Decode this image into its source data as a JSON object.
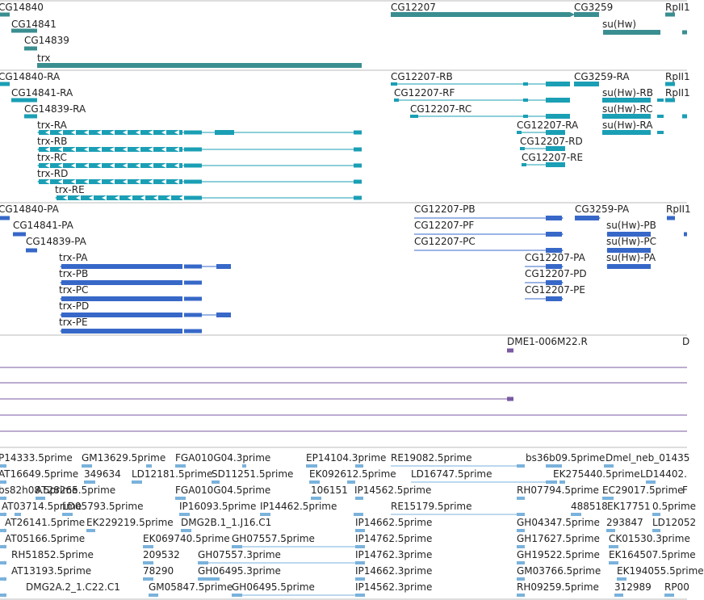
{
  "colors": {
    "gene": "#3a8e90",
    "transcript": "#1a9fb5",
    "protein": "#3768c8",
    "clone": "#7a5aa3",
    "est": "#7ab2dc",
    "track_divider": "#bbbbbb"
  },
  "tracks": [
    {
      "name": "gene-span",
      "color": "gene",
      "labels": [
        "CG14840",
        "CG14841",
        "CG14839",
        "trx",
        "CG12207",
        "CG3259",
        "su(Hw)",
        "RpII1"
      ]
    },
    {
      "name": "transcripts",
      "color": "transcript",
      "labels": [
        "CG14840-RA",
        "CG14841-RA",
        "CG14839-RA",
        "trx-RA",
        "trx-RB",
        "trx-RC",
        "trx-RD",
        "trx-RE",
        "CG12207-RB",
        "CG12207-RF",
        "CG12207-RC",
        "CG12207-RA",
        "CG12207-RD",
        "CG12207-RE",
        "CG3259-RA",
        "su(Hw)-RB",
        "su(Hw)-RC",
        "su(Hw)-RA",
        "RpII1",
        "RpII1"
      ]
    },
    {
      "name": "proteins",
      "color": "protein",
      "labels": [
        "CG14840-PA",
        "CG14841-PA",
        "CG14839-PA",
        "trx-PA",
        "trx-PB",
        "trx-PC",
        "trx-PD",
        "trx-PE",
        "CG12207-PB",
        "CG12207-PF",
        "CG12207-PC",
        "CG12207-PA",
        "CG12207-PD",
        "CG12207-PE",
        "CG3259-PA",
        "su(Hw)-PB",
        "su(Hw)-PC",
        "su(Hw)-PA",
        "RpII1"
      ]
    },
    {
      "name": "clones",
      "color": "clone",
      "labels": [
        "DME1-006M22.R",
        "D"
      ]
    },
    {
      "name": "est-alignments",
      "color": "est",
      "labels": [
        "P14333.5prime",
        "GM13629.5prime",
        "FGA010G04.3prime",
        "EP14104.3prime",
        "RE19082.5prime",
        "bs36b09.5prime",
        "Dmel_neb_01435",
        "AT16649.5prime",
        "349634",
        "LD12181.5prime",
        "SD11251.5prime",
        "EK092612.5prime",
        "LD16747.5prime",
        "EK275440.5prime",
        "LD14402.",
        "bs82h08.5prime",
        "AT28265.5prime",
        "FGA010G04.5prime",
        "106151",
        "IP14562.5prime",
        "RH07794.5prime",
        "EC29017.5prime",
        "F",
        "AT03714.5prime",
        "LD05793.5prime",
        "IP16093.5prime",
        "IP14462.5prime",
        "RE15179.5prime",
        "488518",
        "EK17751",
        "0.5prime",
        "AT26141.5prime",
        "EK229219.5prime",
        "DMG2B.1_1.J16.C1",
        "IP14662.5prime",
        "GH04347.5prime",
        "293847",
        "LD12052",
        "AT05166.5prime",
        "EK069740.5prime",
        "GH07557.5prime",
        "IP14762.5prime",
        "GH17627.5prime",
        "CK01530.3prime",
        "RH51852.5prime",
        "209532",
        "GH07557.3prime",
        "IP14762.3prime",
        "GH19522.5prime",
        "EK164507.5prime",
        "AT13193.5prime",
        "78290",
        "GH06495.3prime",
        "IP14662.3prime",
        "GM03766.5prime",
        "EK194055.5prime",
        "DMG2A.2_1.C22.C1",
        "GM05847.5prime",
        "GH06495.5prime",
        "IP14562.3prime",
        "RH09259.5prime",
        "312989",
        "RP00"
      ]
    }
  ]
}
